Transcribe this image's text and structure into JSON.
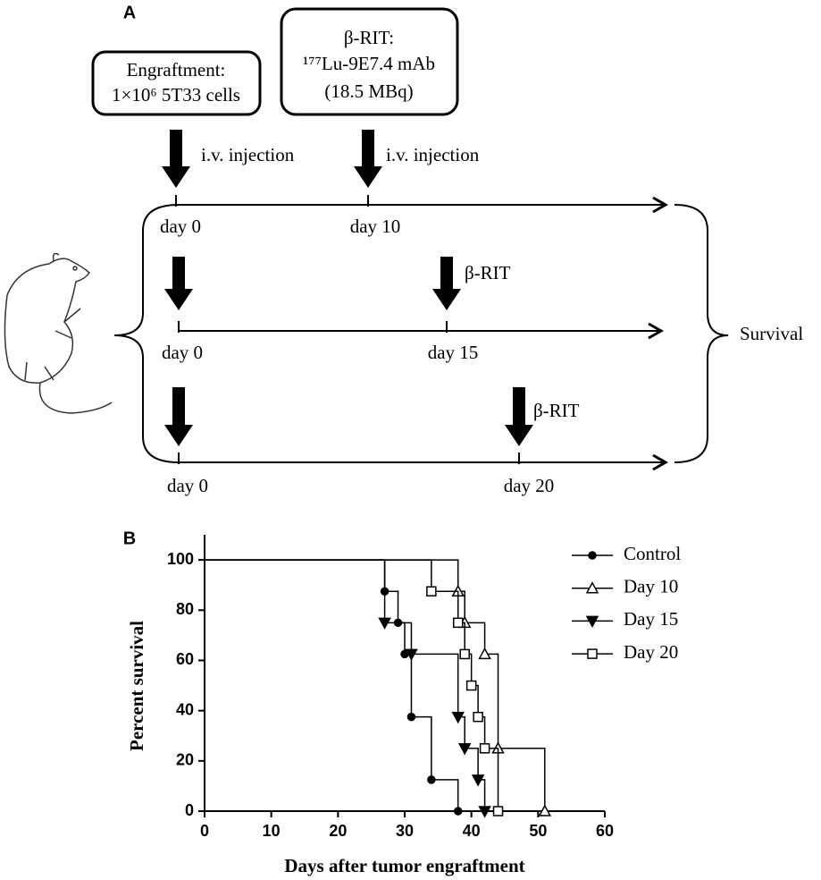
{
  "panel_a": {
    "label": "A",
    "boxes": [
      {
        "lines": [
          "Engraftment:",
          "1×10⁶ 5T33 cells"
        ]
      },
      {
        "lines": [
          "β-RIT:",
          "¹⁷⁷Lu-9E7.4 mAb",
          "(18.5 MBq)"
        ]
      }
    ],
    "injection_labels": [
      "i.v. injection",
      "i.v. injection"
    ],
    "timelines": [
      {
        "start": "day 0",
        "treatment": "day 10"
      },
      {
        "start": "day 0",
        "treatment": "day 15",
        "treatment_label": "β-RIT"
      },
      {
        "start": "day 0",
        "treatment": "day 20",
        "treatment_label": "β-RIT"
      }
    ],
    "outcome": "Survival"
  },
  "chart_data": {
    "type": "step",
    "label": "B",
    "xlabel": "Days after tumor engraftment",
    "ylabel": "Percent survival",
    "xlim": [
      0,
      60
    ],
    "xticks": [
      0,
      10,
      20,
      30,
      40,
      50,
      60
    ],
    "ylim": [
      0,
      110
    ],
    "yticks": [
      0,
      20,
      40,
      60,
      80,
      100
    ],
    "legend": "upper right",
    "series": [
      {
        "name": "Control",
        "color": "#000000",
        "marker": "circle",
        "filled": true,
        "x": [
          0,
          27,
          29,
          30,
          31,
          34,
          38
        ],
        "values": [
          100,
          87.5,
          75,
          62.5,
          37.5,
          12.5,
          0
        ]
      },
      {
        "name": "Day 10",
        "color": "#000000",
        "marker": "triangle-up",
        "filled": false,
        "x": [
          0,
          38,
          39,
          42,
          44,
          51
        ],
        "values": [
          100,
          87.5,
          75,
          62.5,
          25,
          0
        ]
      },
      {
        "name": "Day 15",
        "color": "#000000",
        "marker": "triangle-down",
        "filled": true,
        "x": [
          0,
          27,
          31,
          38,
          39,
          41,
          42
        ],
        "values": [
          100,
          75,
          62.5,
          37.5,
          25,
          12.5,
          0
        ]
      },
      {
        "name": "Day 20",
        "color": "#000000",
        "marker": "square",
        "filled": false,
        "x": [
          0,
          34,
          38,
          39,
          40,
          41,
          42,
          44
        ],
        "values": [
          100,
          87.5,
          75,
          62.5,
          50,
          37.5,
          25,
          0
        ]
      }
    ]
  }
}
